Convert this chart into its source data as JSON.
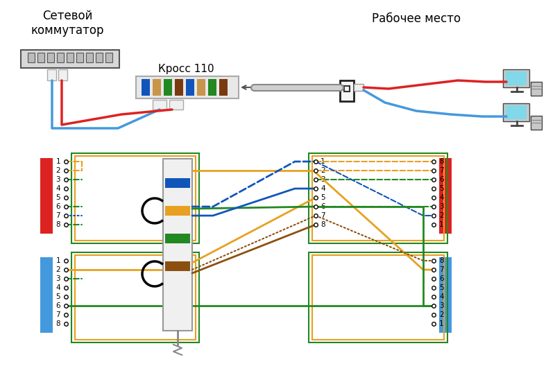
{
  "bg": "#ffffff",
  "text_setevor": "Сетевой\nкоммутатор",
  "text_rabochee": "Рабочее место",
  "text_kross": "Кросс 110",
  "col_blue": "#4499DD",
  "col_red": "#DD2222",
  "col_orange": "#E8A020",
  "col_green": "#228822",
  "col_brown": "#8B5010",
  "col_darkblue": "#1155BB",
  "col_gray": "#999999",
  "col_lgray": "#CCCCCC",
  "col_dgray": "#555555",
  "figsize": [
    8.0,
    5.51
  ],
  "dpi": 100
}
